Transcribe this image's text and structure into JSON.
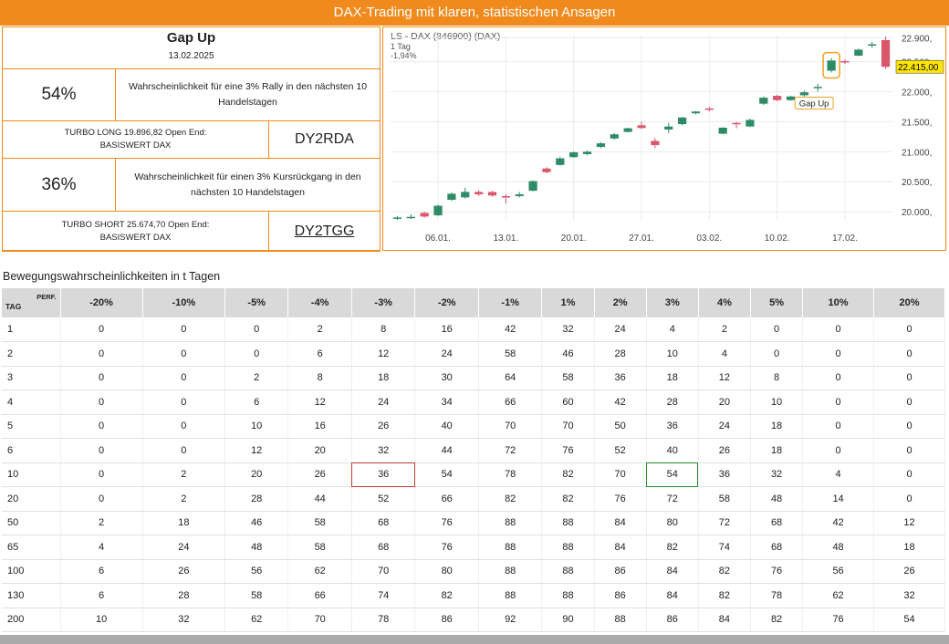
{
  "banner": {
    "title": "DAX-Trading mit klaren, statistischen Ansagen"
  },
  "info": {
    "title": "Gap Up",
    "date": "13.02.2025",
    "rally_pct": "54%",
    "rally_text": "Wahrscheinlichkeit für eine 3% Rally in den nächsten 10 Handelstagen",
    "long_product": "TURBO LONG 19.896,82 Open End: BASISWERT DAX",
    "long_code": "DY2RDA",
    "decline_pct": "36%",
    "decline_text": "Wahrscheinlichkeit für einen 3% Kursrückgang in den nächsten 10 Handelstagen",
    "short_product": "TURBO SHORT 25.674,70 Open End: BASISWERT DAX",
    "short_code": "DY2TGG"
  },
  "chart_data": {
    "type": "candlestick",
    "title": "LS - DAX (846900) (DAX)",
    "subtitle": "1 Tag",
    "change": "-1,94%",
    "last_price": "22.415,00",
    "annotation": "Gap Up",
    "ylim": [
      19850,
      22950
    ],
    "y_ticks": [
      20000,
      20500,
      21000,
      21500,
      22000,
      22500,
      22900
    ],
    "y_tick_labels": [
      "20.000,",
      "20.500,",
      "21.000,",
      "21.500,",
      "22.000,",
      "22.500,",
      "22.900,"
    ],
    "x_ticks": [
      {
        "label": "06.01.",
        "index": 3
      },
      {
        "label": "13.01.",
        "index": 8
      },
      {
        "label": "20.01.",
        "index": 13
      },
      {
        "label": "27.01.",
        "index": 18
      },
      {
        "label": "03.02.",
        "index": 23
      },
      {
        "label": "10.02.",
        "index": 28
      },
      {
        "label": "17.02.",
        "index": 33
      }
    ],
    "candles": [
      {
        "o": 19900,
        "h": 19930,
        "l": 19860,
        "c": 19905
      },
      {
        "o": 19905,
        "h": 19960,
        "l": 19880,
        "c": 19915
      },
      {
        "o": 19980,
        "h": 20000,
        "l": 19900,
        "c": 19920
      },
      {
        "o": 19940,
        "h": 20120,
        "l": 19930,
        "c": 20100
      },
      {
        "o": 20200,
        "h": 20320,
        "l": 20180,
        "c": 20300
      },
      {
        "o": 20240,
        "h": 20400,
        "l": 20220,
        "c": 20330
      },
      {
        "o": 20330,
        "h": 20360,
        "l": 20260,
        "c": 20290
      },
      {
        "o": 20330,
        "h": 20350,
        "l": 20250,
        "c": 20270
      },
      {
        "o": 20260,
        "h": 20290,
        "l": 20140,
        "c": 20255
      },
      {
        "o": 20260,
        "h": 20330,
        "l": 20240,
        "c": 20290
      },
      {
        "o": 20350,
        "h": 20520,
        "l": 20340,
        "c": 20510
      },
      {
        "o": 20720,
        "h": 20740,
        "l": 20640,
        "c": 20660
      },
      {
        "o": 20780,
        "h": 20910,
        "l": 20770,
        "c": 20890
      },
      {
        "o": 20910,
        "h": 21000,
        "l": 20900,
        "c": 20990
      },
      {
        "o": 20960,
        "h": 21020,
        "l": 20940,
        "c": 21000
      },
      {
        "o": 21080,
        "h": 21160,
        "l": 21060,
        "c": 21140
      },
      {
        "o": 21220,
        "h": 21310,
        "l": 21200,
        "c": 21290
      },
      {
        "o": 21330,
        "h": 21400,
        "l": 21320,
        "c": 21390
      },
      {
        "o": 21440,
        "h": 21500,
        "l": 21380,
        "c": 21395
      },
      {
        "o": 21180,
        "h": 21230,
        "l": 21060,
        "c": 21110
      },
      {
        "o": 21370,
        "h": 21480,
        "l": 21310,
        "c": 21420
      },
      {
        "o": 21460,
        "h": 21580,
        "l": 21440,
        "c": 21570
      },
      {
        "o": 21640,
        "h": 21680,
        "l": 21620,
        "c": 21670
      },
      {
        "o": 21720,
        "h": 21750,
        "l": 21670,
        "c": 21700
      },
      {
        "o": 21300,
        "h": 21410,
        "l": 21290,
        "c": 21400
      },
      {
        "o": 21480,
        "h": 21500,
        "l": 21390,
        "c": 21470
      },
      {
        "o": 21420,
        "h": 21550,
        "l": 21410,
        "c": 21530
      },
      {
        "o": 21800,
        "h": 21920,
        "l": 21780,
        "c": 21900
      },
      {
        "o": 21930,
        "h": 21950,
        "l": 21840,
        "c": 21860
      },
      {
        "o": 21860,
        "h": 21930,
        "l": 21850,
        "c": 21920
      },
      {
        "o": 21940,
        "h": 22020,
        "l": 21920,
        "c": 21990
      },
      {
        "o": 22060,
        "h": 22130,
        "l": 22000,
        "c": 22080
      },
      {
        "o": 22350,
        "h": 22560,
        "l": 22320,
        "c": 22520
      },
      {
        "o": 22510,
        "h": 22540,
        "l": 22460,
        "c": 22490
      },
      {
        "o": 22600,
        "h": 22720,
        "l": 22590,
        "c": 22700
      },
      {
        "o": 22780,
        "h": 22830,
        "l": 22730,
        "c": 22790
      },
      {
        "o": 22860,
        "h": 22920,
        "l": 22380,
        "c": 22415
      }
    ],
    "gap_up_index": 32
  },
  "table": {
    "section_label": "Bewegungswahrscheinlichkeiten in t Tagen",
    "tag_label": "TAG",
    "perf_label": "PERF.",
    "headers": [
      "-20%",
      "-10%",
      "-5%",
      "-4%",
      "-3%",
      "-2%",
      "-1%",
      "1%",
      "2%",
      "3%",
      "4%",
      "5%",
      "10%",
      "20%"
    ],
    "rows": [
      {
        "tag": "1",
        "values": [
          "0",
          "0",
          "0",
          "2",
          "8",
          "16",
          "42",
          "32",
          "24",
          "4",
          "2",
          "0",
          "0",
          "0"
        ]
      },
      {
        "tag": "2",
        "values": [
          "0",
          "0",
          "0",
          "6",
          "12",
          "24",
          "58",
          "46",
          "28",
          "10",
          "4",
          "0",
          "0",
          "0"
        ]
      },
      {
        "tag": "3",
        "values": [
          "0",
          "0",
          "2",
          "8",
          "18",
          "30",
          "64",
          "58",
          "36",
          "18",
          "12",
          "8",
          "0",
          "0"
        ]
      },
      {
        "tag": "4",
        "values": [
          "0",
          "0",
          "6",
          "12",
          "24",
          "34",
          "66",
          "60",
          "42",
          "28",
          "20",
          "10",
          "0",
          "0"
        ]
      },
      {
        "tag": "5",
        "values": [
          "0",
          "0",
          "10",
          "16",
          "26",
          "40",
          "70",
          "70",
          "50",
          "36",
          "24",
          "18",
          "0",
          "0"
        ]
      },
      {
        "tag": "6",
        "values": [
          "0",
          "0",
          "12",
          "20",
          "32",
          "44",
          "72",
          "76",
          "52",
          "40",
          "26",
          "18",
          "0",
          "0"
        ]
      },
      {
        "tag": "10",
        "values": [
          "0",
          "2",
          "20",
          "26",
          "36",
          "54",
          "78",
          "82",
          "70",
          "54",
          "36",
          "32",
          "4",
          "0"
        ]
      },
      {
        "tag": "20",
        "values": [
          "0",
          "2",
          "28",
          "44",
          "52",
          "66",
          "82",
          "82",
          "76",
          "72",
          "58",
          "48",
          "14",
          "0"
        ]
      },
      {
        "tag": "50",
        "values": [
          "2",
          "18",
          "46",
          "58",
          "68",
          "76",
          "88",
          "88",
          "84",
          "80",
          "72",
          "68",
          "42",
          "12"
        ]
      },
      {
        "tag": "65",
        "values": [
          "4",
          "24",
          "48",
          "58",
          "68",
          "76",
          "88",
          "88",
          "84",
          "82",
          "74",
          "68",
          "48",
          "18"
        ]
      },
      {
        "tag": "100",
        "values": [
          "6",
          "26",
          "56",
          "62",
          "70",
          "80",
          "88",
          "88",
          "86",
          "84",
          "82",
          "76",
          "56",
          "26"
        ]
      },
      {
        "tag": "130",
        "values": [
          "6",
          "28",
          "58",
          "66",
          "74",
          "82",
          "88",
          "88",
          "86",
          "84",
          "82",
          "78",
          "62",
          "32"
        ]
      },
      {
        "tag": "200",
        "values": [
          "10",
          "32",
          "62",
          "70",
          "78",
          "86",
          "92",
          "90",
          "88",
          "86",
          "84",
          "82",
          "76",
          "54"
        ]
      }
    ],
    "highlight_red": {
      "row": 6,
      "col": 4
    },
    "highlight_green": {
      "row": 6,
      "col": 9
    }
  },
  "colors": {
    "accent": "#f08a1c",
    "up": "#2e8b68",
    "down": "#d9566b"
  }
}
